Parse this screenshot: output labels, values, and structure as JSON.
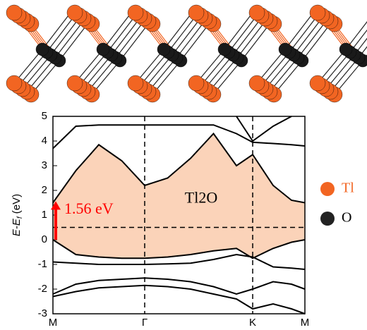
{
  "chart_data": {
    "type": "line",
    "ylabel": [
      "E-E",
      "f",
      " (eV)"
    ],
    "xticks": [
      {
        "value": 0,
        "label": "M"
      },
      {
        "value": 1,
        "label": "Γ"
      },
      {
        "value": 2.177,
        "label": "K"
      },
      {
        "value": 2.746,
        "label": "M"
      }
    ],
    "xlim": [
      0,
      2.746
    ],
    "ylim": [
      -3,
      5
    ],
    "yticks": [
      -3,
      -2,
      -1,
      0,
      1,
      2,
      3,
      4,
      5
    ],
    "x": [
      0,
      0.25,
      0.5,
      0.75,
      1.0,
      1.25,
      1.5,
      1.75,
      2.0,
      2.177,
      2.4,
      2.6,
      2.746
    ],
    "fill_color": "#fbd3b9",
    "series": [
      {
        "color": "#000000",
        "values": [
          1.5,
          2.8,
          3.85,
          3.2,
          2.2,
          2.5,
          3.3,
          4.3,
          3.0,
          3.45,
          2.2,
          1.6,
          1.5
        ]
      },
      {
        "color": "#000000",
        "values": [
          0.0,
          -0.6,
          -0.7,
          -0.75,
          -0.75,
          -0.7,
          -0.6,
          -0.45,
          -0.35,
          -0.75,
          -0.35,
          -0.1,
          0.0
        ]
      },
      {
        "color": "#000000",
        "values": [
          3.7,
          4.6,
          4.65,
          4.65,
          4.65,
          4.65,
          4.65,
          4.65,
          4.3,
          3.95,
          3.9,
          3.85,
          3.8
        ]
      },
      {
        "color": "#000000",
        "values": [
          null,
          null,
          null,
          null,
          null,
          null,
          null,
          null,
          5.0,
          4.0,
          4.6,
          5.0,
          null
        ]
      },
      {
        "color": "#000000",
        "values": [
          -0.9,
          -0.95,
          -1.0,
          -1.0,
          -1.0,
          -0.98,
          -0.95,
          -0.8,
          -0.6,
          -0.7,
          -1.1,
          -1.15,
          -1.2
        ]
      },
      {
        "color": "#000000",
        "values": [
          -2.2,
          -1.8,
          -1.65,
          -1.6,
          -1.55,
          -1.6,
          -1.7,
          -1.9,
          -2.2,
          -2.0,
          -1.7,
          -1.8,
          -2.0
        ]
      },
      {
        "color": "#000000",
        "values": [
          -2.3,
          -2.1,
          -1.95,
          -1.9,
          -1.85,
          -1.9,
          -2.0,
          -2.2,
          -2.4,
          -2.8,
          -2.6,
          -2.8,
          -3.0
        ]
      }
    ],
    "hline": 0.5,
    "annotations": [
      {
        "text": "1.56 eV",
        "from": 0,
        "to": 1.56,
        "color": "#ff0000"
      },
      {
        "text": "Tl2O"
      }
    ],
    "legend": [
      {
        "name": "Tl",
        "color": "#f26522"
      },
      {
        "name": "O",
        "color": "#222222"
      }
    ]
  }
}
